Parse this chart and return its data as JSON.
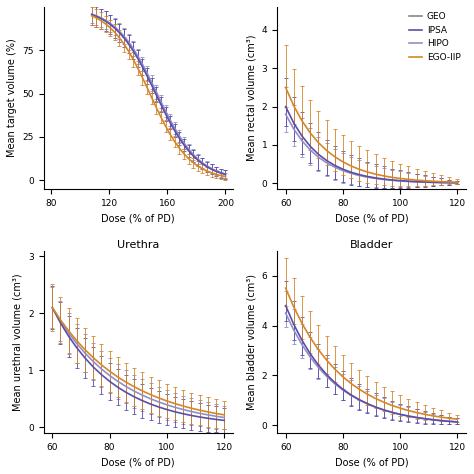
{
  "colors": {
    "IPSA": "#5B4EA8",
    "HIPO": "#9090C8",
    "EGO_IIP": "#D4872A",
    "GEO": "#888888"
  },
  "subplot_titles": [
    "",
    "",
    "Urethra",
    "Bladder"
  ],
  "top_left": {
    "xlabel": "Dose (% of PD)",
    "ylabel": "Mean target volume (%)",
    "xlim": [
      75,
      205
    ],
    "ylim": [
      -5,
      100
    ],
    "xticks": [
      80,
      120,
      160,
      200
    ],
    "yticks": [
      0,
      25,
      50,
      75
    ]
  },
  "top_right": {
    "xlabel": "Dose (% of PD)",
    "ylabel": "Mean rectal volume (cm³)",
    "xlim": [
      57,
      123
    ],
    "ylim": [
      -0.15,
      4.6
    ],
    "xticks": [
      60,
      80,
      100,
      120
    ],
    "yticks": [
      0,
      1,
      2,
      3,
      4
    ]
  },
  "bottom_left": {
    "xlabel": "Dose (% of PD)",
    "ylabel": "Mean urethral volume (cm³)",
    "xlim": [
      57,
      123
    ],
    "ylim": [
      -0.1,
      3.1
    ],
    "xticks": [
      60,
      80,
      100,
      120
    ],
    "yticks": [
      0,
      1,
      2,
      3
    ]
  },
  "bottom_right": {
    "xlabel": "Dose (% of PD)",
    "ylabel": "Mean bladder volume (cm³)",
    "xlim": [
      57,
      123
    ],
    "ylim": [
      -0.3,
      7.0
    ],
    "xticks": [
      60,
      80,
      100,
      120
    ],
    "yticks": [
      0,
      2,
      4,
      6
    ]
  },
  "legend_entries": [
    "GEO",
    "IPSA",
    "HIPO",
    "EGO-IIP"
  ]
}
